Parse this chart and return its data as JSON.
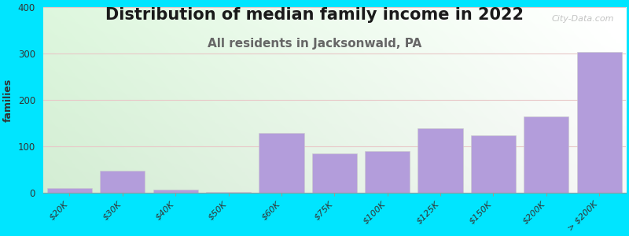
{
  "title": "Distribution of median family income in 2022",
  "subtitle": "All residents in Jacksonwald, PA",
  "ylabel": "families",
  "categories": [
    "$20K",
    "$30K",
    "$40K",
    "$50K",
    "$60K",
    "$75K",
    "$100K",
    "$125K",
    "$150K",
    "$200K",
    "> $200K"
  ],
  "values": [
    10,
    48,
    8,
    2,
    130,
    85,
    90,
    140,
    125,
    165,
    303
  ],
  "bar_color": "#b39ddb",
  "bar_edgecolor": "#cccccc",
  "background_outer": "#00e5ff",
  "ylim": [
    0,
    400
  ],
  "yticks": [
    0,
    100,
    200,
    300,
    400
  ],
  "grid_color": "#e8c8c8",
  "title_fontsize": 15,
  "subtitle_fontsize": 11,
  "subtitle_color": "#666666",
  "watermark": "City-Data.com",
  "watermark_color": "#aaaaaa",
  "figsize": [
    8.0,
    3.0
  ],
  "dpi": 100
}
